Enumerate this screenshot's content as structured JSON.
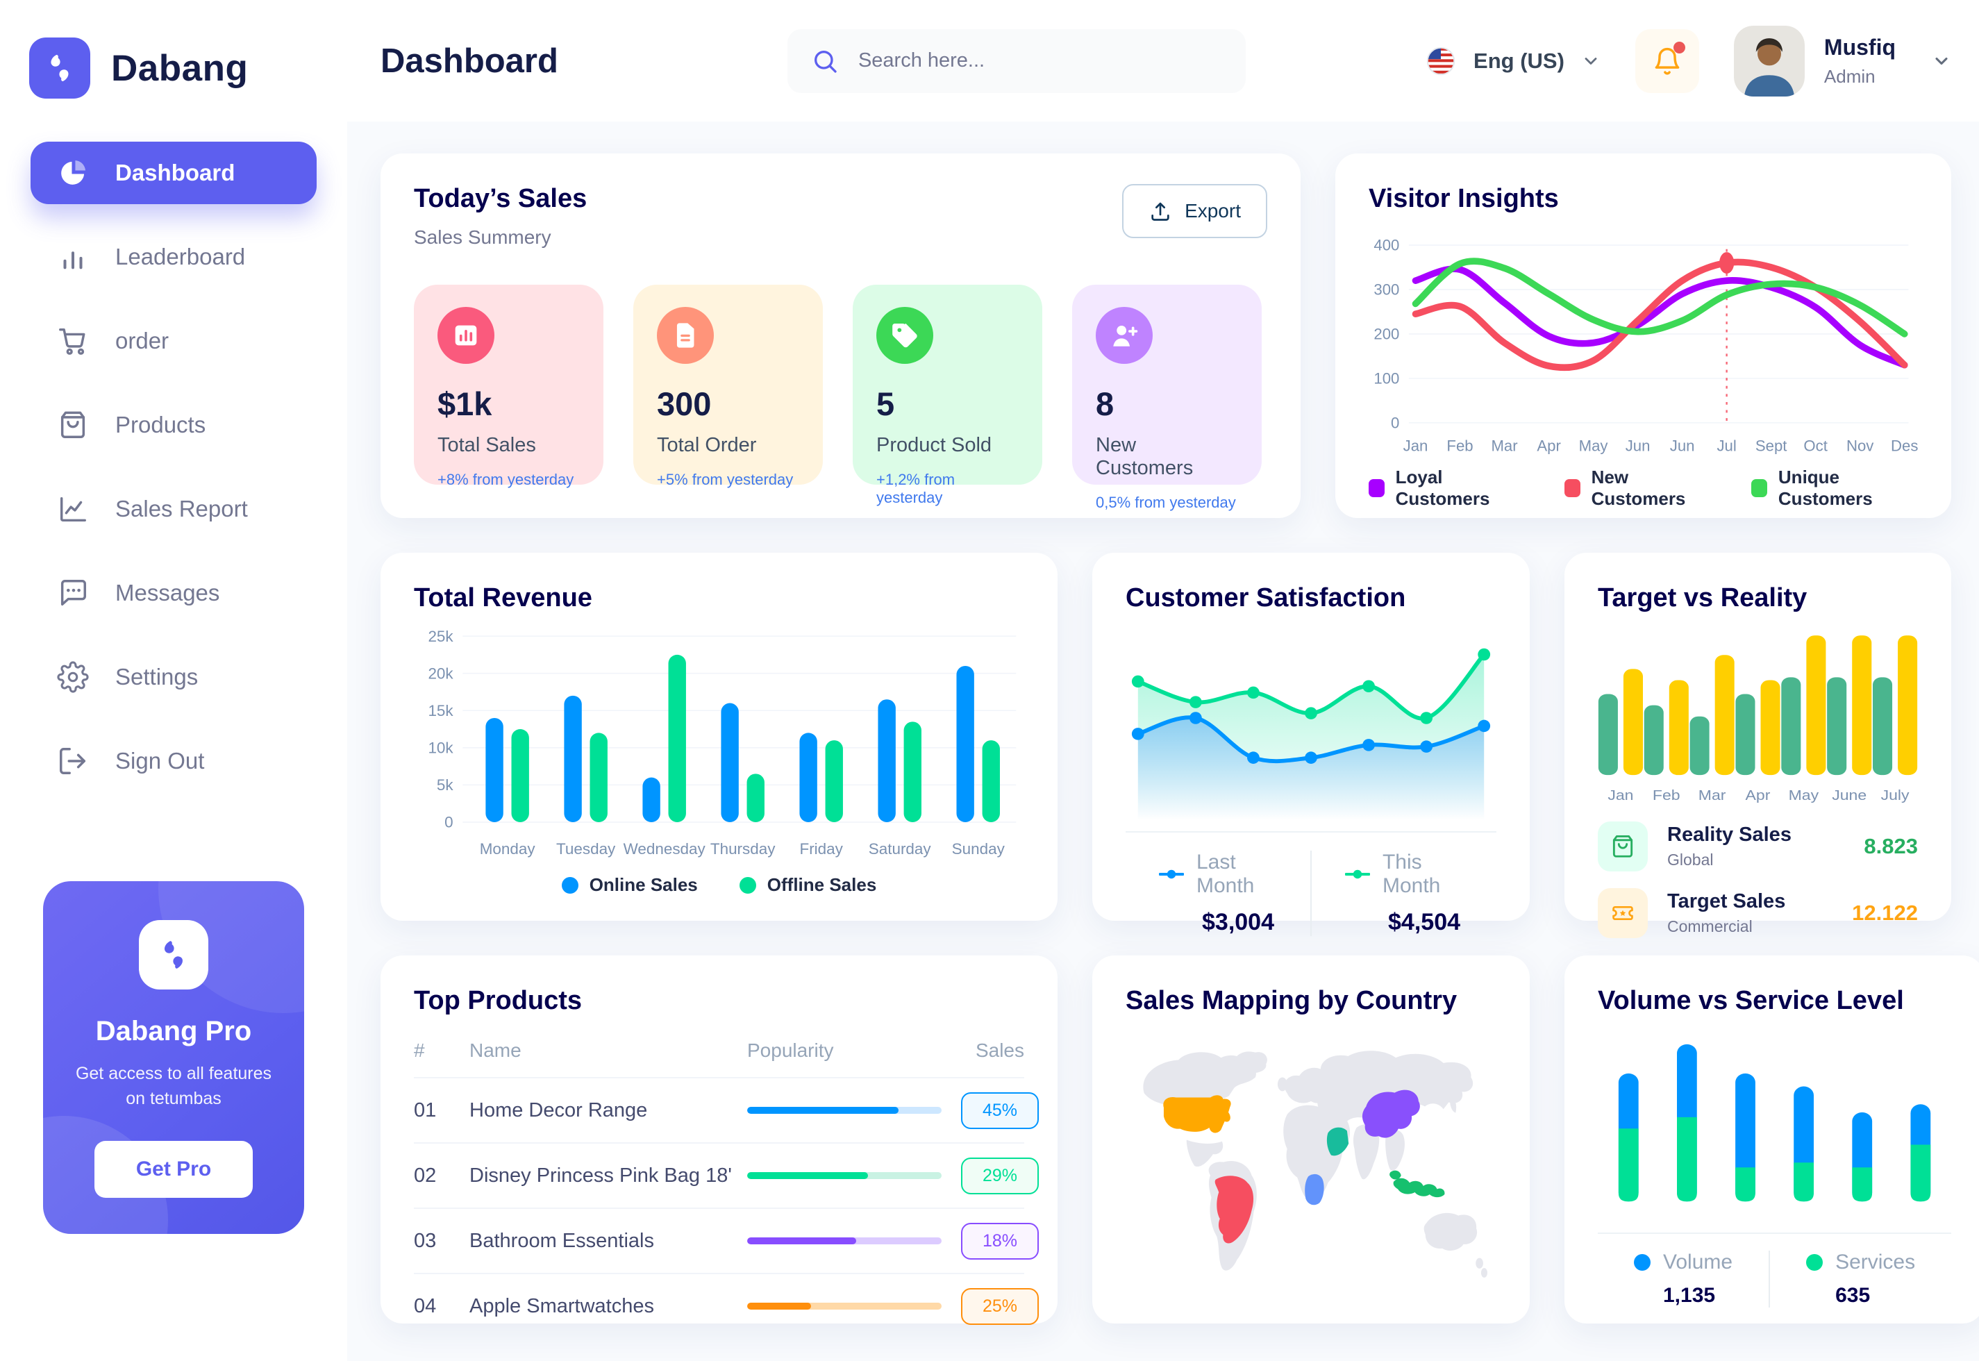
{
  "app": {
    "brand": "Dabang",
    "accent_color": "#5D5FEF"
  },
  "header": {
    "title": "Dashboard",
    "search": {
      "placeholder": "Search here...",
      "icon": "search-icon"
    },
    "language": {
      "label": "Eng (US)",
      "icon": "us-flag-icon"
    },
    "notifications": {
      "icon": "bell-icon",
      "has_unread": true
    },
    "user": {
      "name": "Musfiq",
      "role": "Admin"
    }
  },
  "sidebar": {
    "items": [
      {
        "label": "Dashboard",
        "icon": "pie-chart-icon",
        "active": true
      },
      {
        "label": "Leaderboard",
        "icon": "bar-chart-icon",
        "active": false
      },
      {
        "label": "order",
        "icon": "cart-icon",
        "active": false
      },
      {
        "label": "Products",
        "icon": "bag-icon",
        "active": false
      },
      {
        "label": "Sales Report",
        "icon": "line-chart-icon",
        "active": false
      },
      {
        "label": "Messages",
        "icon": "message-icon",
        "active": false
      },
      {
        "label": "Settings",
        "icon": "gear-icon",
        "active": false
      },
      {
        "label": "Sign Out",
        "icon": "sign-out-icon",
        "active": false
      }
    ],
    "pro_card": {
      "title": "Dabang Pro",
      "subtitle": "Get access to all features on tetumbas",
      "button_label": "Get Pro"
    }
  },
  "today_sales": {
    "title": "Today’s Sales",
    "subtitle": "Sales Summery",
    "export_label": "Export",
    "stats": [
      {
        "value": "$1k",
        "label": "Total Sales",
        "delta": "+8% from yesterday",
        "card_bg": "#FFE2E5",
        "icon_bg": "#FA5A7D",
        "icon": "bar-graph-icon"
      },
      {
        "value": "300",
        "label": "Total Order",
        "delta": "+5% from yesterday",
        "card_bg": "#FFF4DE",
        "icon_bg": "#FF947A",
        "icon": "order-file-icon"
      },
      {
        "value": "5",
        "label": "Product Sold",
        "delta": "+1,2% from yesterday",
        "card_bg": "#DCFCE7",
        "icon_bg": "#3CD856",
        "icon": "tag-icon"
      },
      {
        "value": "8",
        "label": "New Customers",
        "delta": "0,5% from yesterday",
        "card_bg": "#F3E8FF",
        "icon_bg": "#BF83FF",
        "icon": "user-plus-icon"
      }
    ]
  },
  "chart_data": {
    "visitor_insights": {
      "type": "line",
      "title": "Visitor Insights",
      "x": [
        "Jan",
        "Feb",
        "Mar",
        "Apr",
        "May",
        "Jun",
        "Jun",
        "Jul",
        "Sept",
        "Oct",
        "Nov",
        "Des"
      ],
      "ylim": [
        0,
        400
      ],
      "yticks": [
        0,
        100,
        200,
        300,
        400
      ],
      "grid": true,
      "legend_position": "bottom",
      "series": [
        {
          "name": "Loyal Customers",
          "color": "#A700FF",
          "values": [
            320,
            345,
            270,
            195,
            180,
            220,
            290,
            320,
            305,
            260,
            175,
            130
          ]
        },
        {
          "name": "New Customers",
          "color": "#F64E60",
          "values": [
            245,
            262,
            180,
            128,
            140,
            230,
            320,
            360,
            350,
            305,
            228,
            130
          ]
        },
        {
          "name": "Unique Customers",
          "color": "#3CD856",
          "values": [
            268,
            358,
            348,
            290,
            232,
            205,
            230,
            288,
            312,
            305,
            265,
            200
          ]
        }
      ],
      "annotation": {
        "highlight_x": "Jul",
        "highlight_index": 7,
        "marker_series": "New Customers",
        "marker_value": 360
      }
    },
    "total_revenue": {
      "type": "bar",
      "title": "Total Revenue",
      "categories": [
        "Monday",
        "Tuesday",
        "Wednesday",
        "Thursday",
        "Friday",
        "Saturday",
        "Sunday"
      ],
      "ylim": [
        0,
        25000
      ],
      "ytick_labels": [
        "0",
        "5k",
        "10k",
        "15k",
        "20k",
        "25k"
      ],
      "grid": true,
      "legend_position": "bottom",
      "series": [
        {
          "name": "Online Sales",
          "color": "#0095FF",
          "values": [
            14000,
            17000,
            6000,
            16000,
            12000,
            16500,
            21000
          ]
        },
        {
          "name": "Offline Sales",
          "color": "#00E096",
          "values": [
            12500,
            12000,
            22500,
            6500,
            11000,
            13500,
            11000
          ]
        }
      ]
    },
    "customer_satisfaction": {
      "type": "area",
      "title": "Customer Satisfaction",
      "ylim": [
        0,
        100
      ],
      "legend_position": "bottom",
      "series": [
        {
          "name": "Last Month",
          "total": "$3,004",
          "color": "#0095FF",
          "values": [
            45,
            55,
            30,
            30,
            38,
            37,
            50
          ]
        },
        {
          "name": "This Month",
          "total": "$4,504",
          "color": "#00E096",
          "values": [
            78,
            65,
            71,
            58,
            75,
            55,
            95
          ]
        }
      ]
    },
    "target_vs_reality": {
      "type": "bar",
      "title": "Target vs Reality",
      "categories": [
        "Jan",
        "Feb",
        "Mar",
        "Apr",
        "May",
        "June",
        "July"
      ],
      "ylim": [
        0,
        100
      ],
      "series": [
        {
          "name": "Reality Sales",
          "color": "#4AB58E",
          "values": [
            58,
            50,
            42,
            58,
            70,
            70,
            70
          ]
        },
        {
          "name": "Target Sales",
          "color": "#FFCF00",
          "values": [
            76,
            68,
            86,
            68,
            100,
            100,
            100
          ]
        }
      ],
      "legend_rows": [
        {
          "label": "Reality Sales",
          "sublabel": "Global",
          "value": "8.823",
          "value_color": "#27AE60",
          "icon": "bag-icon",
          "icon_color": "#27AE60",
          "icon_bg": "#E2FFF3"
        },
        {
          "label": "Target Sales",
          "sublabel": "Commercial",
          "value": "12.122",
          "value_color": "#FFA412",
          "icon": "ticket-icon",
          "icon_color": "#FFA412",
          "icon_bg": "#FFF4DE"
        }
      ]
    },
    "top_products": {
      "type": "table",
      "title": "Top Products",
      "columns": [
        "#",
        "Name",
        "Popularity",
        "Sales"
      ],
      "rows": [
        {
          "num": "01",
          "name": "Home Decor Range",
          "popularity_pct": 78,
          "sales": "45%",
          "color": "#0095FF",
          "track": "#CDE7FF",
          "badge_bg": "#F0F9FF"
        },
        {
          "num": "02",
          "name": "Disney Princess Pink Bag 18'",
          "popularity_pct": 62,
          "sales": "29%",
          "color": "#00E096",
          "track": "#C9F2E3",
          "badge_bg": "#F0FDF6"
        },
        {
          "num": "03",
          "name": "Bathroom Essentials",
          "popularity_pct": 56,
          "sales": "18%",
          "color": "#884DFF",
          "track": "#DCCBFF",
          "badge_bg": "#FAF5FF"
        },
        {
          "num": "04",
          "name": "Apple Smartwatches",
          "popularity_pct": 33,
          "sales": "25%",
          "color": "#FF8F0D",
          "track": "#FFD9A7",
          "badge_bg": "#FFF7ED"
        }
      ]
    },
    "sales_mapping": {
      "type": "map",
      "title": "Sales Mapping by Country",
      "base_color": "#E6E7ED",
      "regions": [
        {
          "name": "United States",
          "color": "#FFA800"
        },
        {
          "name": "Brazil",
          "color": "#F64E60"
        },
        {
          "name": "Saudi Arabia",
          "color": "#18BC9C"
        },
        {
          "name": "DR Congo",
          "color": "#6293FB"
        },
        {
          "name": "China",
          "color": "#8950FC"
        },
        {
          "name": "Indonesia",
          "color": "#16C06E"
        }
      ]
    },
    "volume_vs_service": {
      "type": "stacked-bar",
      "title": "Volume vs Service Level",
      "legend_position": "bottom",
      "series": [
        {
          "name": "Volume",
          "total": "1,135",
          "color": "#0095FF",
          "values": [
            34,
            45,
            58,
            47,
            34,
            25
          ]
        },
        {
          "name": "Services",
          "total": "635",
          "color": "#00E096",
          "values": [
            45,
            52,
            21,
            24,
            21,
            35
          ]
        }
      ]
    }
  }
}
